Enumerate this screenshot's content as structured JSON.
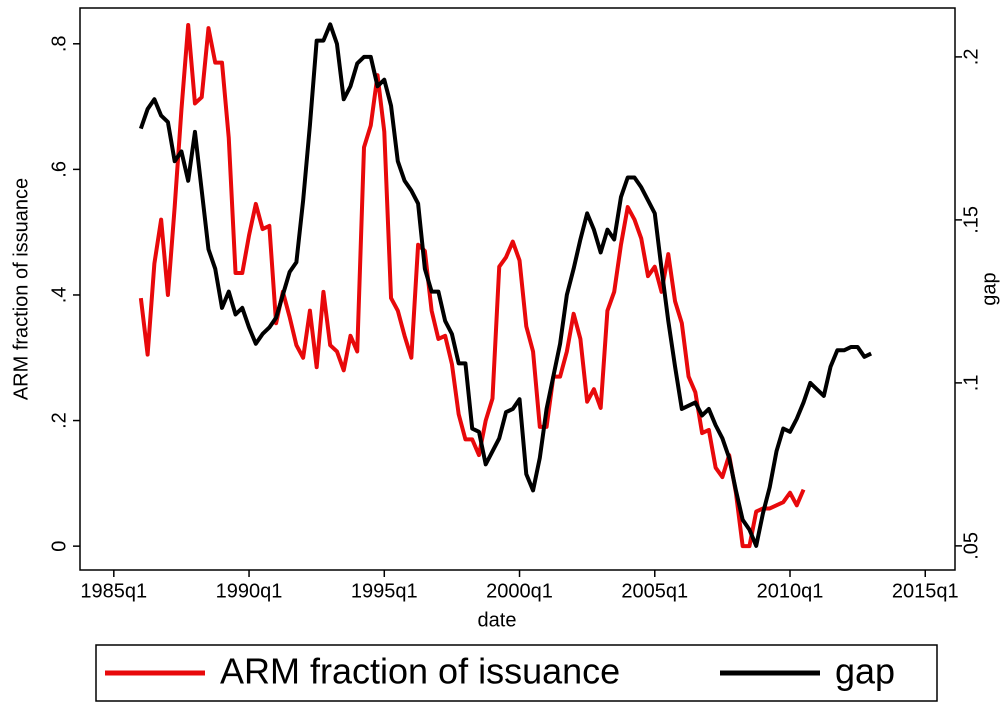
{
  "chart_data": {
    "type": "line",
    "x_label": "date",
    "y_label": "ARM fraction of issuance",
    "y2_label": "gap",
    "x": [
      104,
      105,
      106,
      107,
      108,
      109,
      110,
      111,
      112,
      113,
      114,
      115,
      116,
      117,
      118,
      119,
      120,
      121,
      122,
      123,
      124,
      125,
      126,
      127,
      128,
      129,
      130,
      131,
      132,
      133,
      134,
      135,
      136,
      137,
      138,
      139,
      140,
      141,
      142,
      143,
      144,
      145,
      146,
      147,
      148,
      149,
      150,
      151,
      152,
      153,
      154,
      155,
      156,
      157,
      158,
      159,
      160,
      161,
      162,
      163,
      164,
      165,
      166,
      167,
      168,
      169,
      170,
      171,
      172,
      173,
      174,
      175,
      176,
      177,
      178,
      179,
      180,
      181,
      182,
      183,
      184,
      185,
      186,
      187,
      188,
      189,
      190,
      191,
      192,
      193,
      194,
      195,
      196,
      197,
      198,
      199,
      200,
      201,
      202,
      203,
      204,
      205,
      206,
      207,
      208,
      209,
      210,
      211,
      212
    ],
    "series": [
      {
        "name": "ARM fraction of issuance",
        "color": "#e8090b",
        "axis": "y",
        "values": [
          0.395,
          0.305,
          0.45,
          0.52,
          0.4,
          0.54,
          0.695,
          0.83,
          0.705,
          0.715,
          0.825,
          0.77,
          0.77,
          0.65,
          0.435,
          0.435,
          0.495,
          0.545,
          0.505,
          0.51,
          0.355,
          0.405,
          0.365,
          0.32,
          0.3,
          0.375,
          0.285,
          0.405,
          0.32,
          0.31,
          0.28,
          0.335,
          0.31,
          0.635,
          0.67,
          0.75,
          0.66,
          0.395,
          0.375,
          0.335,
          0.3,
          0.48,
          0.47,
          0.375,
          0.33,
          0.335,
          0.29,
          0.21,
          0.17,
          0.17,
          0.145,
          0.2,
          0.235,
          0.445,
          0.46,
          0.485,
          0.455,
          0.35,
          0.31,
          0.19,
          0.19,
          0.27,
          0.27,
          0.31,
          0.37,
          0.33,
          0.23,
          0.25,
          0.22,
          0.375,
          0.405,
          0.48,
          0.54,
          0.52,
          0.49,
          0.43,
          0.445,
          0.405,
          0.465,
          0.39,
          0.355,
          0.27,
          0.245,
          0.18,
          0.185,
          0.125,
          0.11,
          0.145,
          0.085,
          0,
          0,
          0.055,
          0.06,
          0.06,
          0.065,
          0.07,
          0.085,
          0.065,
          0.09,
          null,
          null,
          null,
          null,
          null,
          null,
          null,
          null,
          null,
          null
        ]
      },
      {
        "name": "gap",
        "color": "#000000",
        "axis": "y2",
        "values": [
          0.178,
          0.184,
          0.187,
          0.182,
          0.18,
          0.168,
          0.171,
          0.162,
          0.177,
          0.159,
          0.141,
          0.135,
          0.123,
          0.128,
          0.121,
          0.123,
          0.117,
          0.112,
          0.115,
          0.117,
          0.12,
          0.127,
          0.134,
          0.137,
          0.156,
          0.179,
          0.205,
          0.205,
          0.21,
          0.204,
          0.187,
          0.191,
          0.198,
          0.2,
          0.2,
          0.191,
          0.193,
          0.185,
          0.168,
          0.162,
          0.159,
          0.155,
          0.135,
          0.128,
          0.128,
          0.119,
          0.115,
          0.106,
          0.106,
          0.086,
          0.085,
          0.075,
          0.079,
          0.083,
          0.091,
          0.092,
          0.095,
          0.072,
          0.067,
          0.077,
          0.092,
          0.102,
          0.112,
          0.127,
          0.135,
          0.144,
          0.152,
          0.147,
          0.14,
          0.147,
          0.144,
          0.157,
          0.163,
          0.163,
          0.16,
          0.156,
          0.152,
          0.135,
          0.119,
          0.105,
          0.092,
          0.093,
          0.094,
          0.09,
          0.092,
          0.087,
          0.083,
          0.077,
          0.067,
          0.058,
          0.055,
          0.05,
          0.06,
          0.068,
          0.079,
          0.086,
          0.085,
          0.089,
          0.094,
          0.1,
          0.098,
          0.096,
          0.105,
          0.11,
          0.11,
          0.111,
          0.111,
          0.108,
          0.109
        ]
      }
    ],
    "xlim": [
      95,
      224.4
    ],
    "xticks": [
      {
        "value": 100,
        "label": "1985q1"
      },
      {
        "value": 120,
        "label": "1990q1"
      },
      {
        "value": 140,
        "label": "1995q1"
      },
      {
        "value": 160,
        "label": "2000q1"
      },
      {
        "value": 180,
        "label": "2005q1"
      },
      {
        "value": 200,
        "label": "2010q1"
      },
      {
        "value": 220,
        "label": "2015q1"
      }
    ],
    "ylim": [
      -0.038,
      0.857
    ],
    "yticks": [
      0,
      {
        "value": 0.2,
        "label": ".2"
      },
      {
        "value": 0.4,
        "label": ".4"
      },
      {
        "value": 0.6,
        "label": ".6"
      },
      {
        "value": 0.8,
        "label": ".8"
      }
    ],
    "y2lim": [
      0.0426,
      0.215
    ],
    "y2ticks": [
      {
        "value": 0.05,
        "label": ".05"
      },
      {
        "value": 0.1,
        "label": ".1"
      },
      {
        "value": 0.15,
        "label": ".15"
      },
      {
        "value": 0.2,
        "label": ".2"
      }
    ],
    "grid": false,
    "legend": "bottom"
  }
}
